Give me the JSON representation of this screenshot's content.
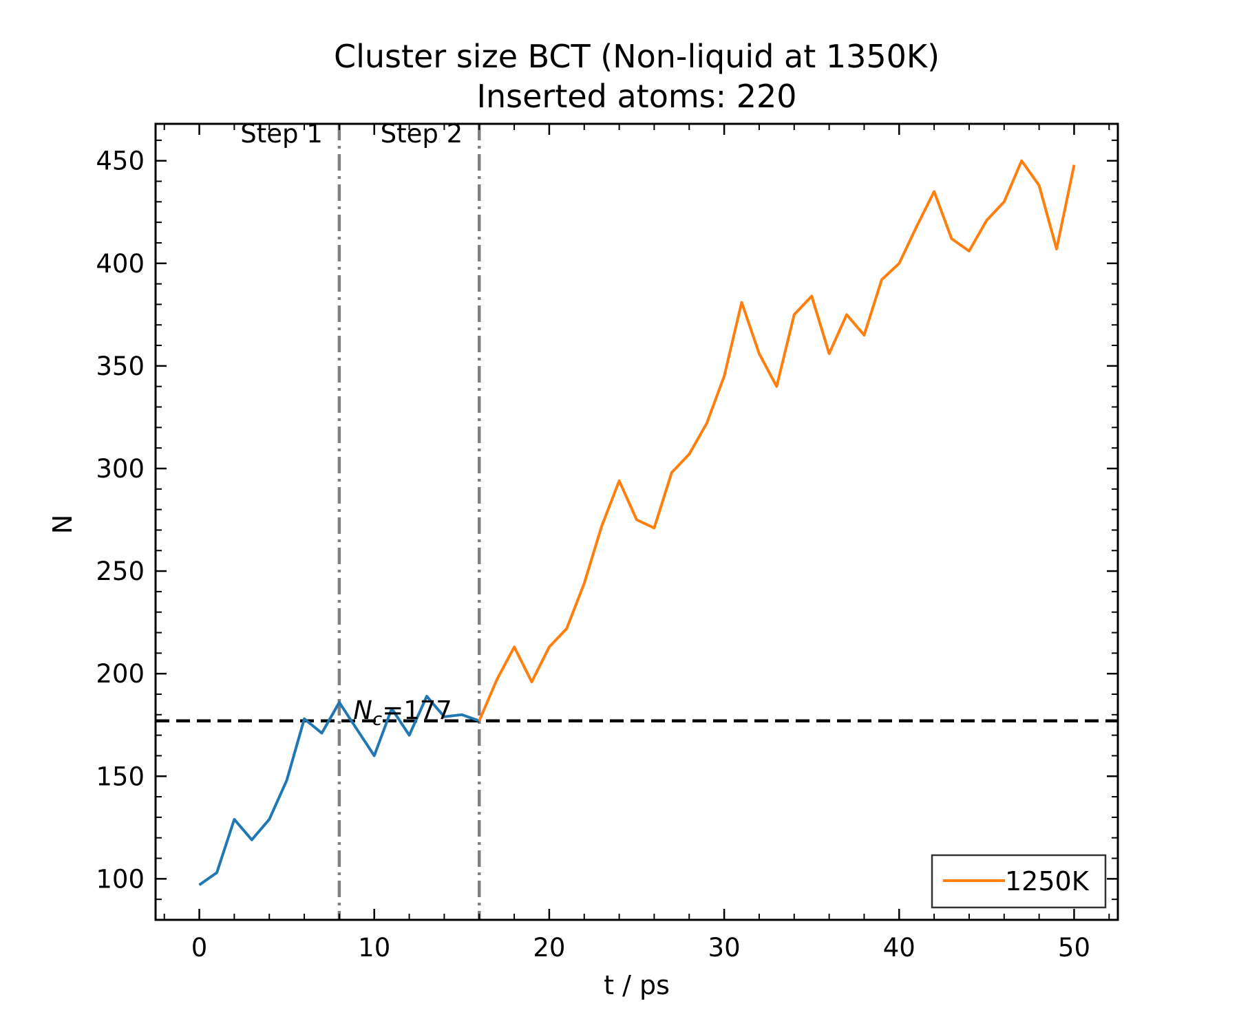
{
  "chart_data": {
    "type": "line",
    "title": "Cluster size BCT (Non-liquid at 1350K)",
    "subtitle": "Inserted atoms: 220",
    "xlabel": "t / ps",
    "ylabel": "N",
    "xlim": [
      -2.5,
      52.5
    ],
    "ylim": [
      80,
      468
    ],
    "xticks": [
      0,
      10,
      20,
      30,
      40,
      50
    ],
    "yticks": [
      100,
      150,
      200,
      250,
      300,
      350,
      400,
      450
    ],
    "grid": false,
    "legend_position": "lower right",
    "series": [
      {
        "color": "#1f77b4",
        "x": [
          0,
          1,
          2,
          3,
          4,
          5,
          6,
          7,
          8,
          9,
          10,
          11,
          12,
          13,
          14,
          15,
          16
        ],
        "y": [
          97,
          103,
          129,
          119,
          129,
          148,
          178,
          171,
          186,
          173,
          160,
          183,
          170,
          189,
          179,
          180,
          177
        ]
      },
      {
        "name": "1250K",
        "color": "#ff7f0e",
        "x": [
          16,
          17,
          18,
          19,
          20,
          21,
          22,
          23,
          24,
          25,
          26,
          27,
          28,
          29,
          30,
          31,
          32,
          33,
          34,
          35,
          36,
          37,
          38,
          39,
          40,
          41,
          42,
          43,
          44,
          45,
          46,
          47,
          48,
          49,
          50
        ],
        "y": [
          177,
          197,
          213,
          196,
          213,
          222,
          244,
          272,
          294,
          275,
          271,
          298,
          307,
          322,
          345,
          381,
          356,
          340,
          375,
          384,
          356,
          375,
          365,
          392,
          400,
          418,
          435,
          412,
          406,
          421,
          430,
          450,
          438,
          407,
          448
        ]
      }
    ],
    "vlines": [
      {
        "x": 8,
        "color": "#7f7f7f",
        "style": "dashdot"
      },
      {
        "x": 16,
        "color": "#7f7f7f",
        "style": "dashdot"
      }
    ],
    "hline": {
      "y": 177,
      "color": "#000000",
      "style": "dashed"
    },
    "annotations": [
      {
        "text": "Step 1",
        "x": 4.7,
        "y": 459
      },
      {
        "text": "Step 2",
        "x": 12.7,
        "y": 459
      },
      {
        "text_main": "N",
        "text_sub": "c",
        "text_rest": "=177",
        "x": 8.8,
        "y": 178
      }
    ],
    "legend": {
      "entries": [
        "1250K"
      ]
    }
  }
}
